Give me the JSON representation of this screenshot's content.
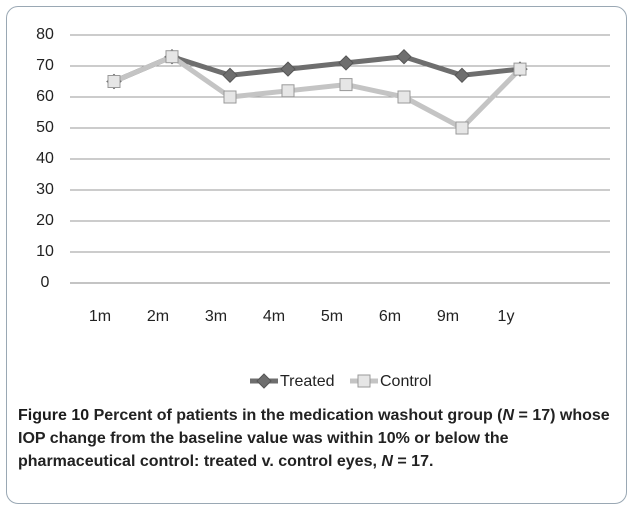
{
  "chart_data": {
    "type": "line",
    "categories": [
      "1m",
      "2m",
      "3m",
      "4m",
      "5m",
      "6m",
      "9m",
      "1y"
    ],
    "series": [
      {
        "name": "Treated",
        "color": "#6e6e6e",
        "values": [
          65,
          73,
          67,
          69,
          71,
          73,
          67,
          69
        ]
      },
      {
        "name": "Control",
        "color": "#c4c4c4",
        "values": [
          65,
          73,
          60,
          62,
          64,
          60,
          50,
          69
        ]
      }
    ],
    "ylim": [
      0,
      80
    ],
    "yticks": [
      0,
      10,
      20,
      30,
      40,
      50,
      60,
      70,
      80
    ],
    "grid": true,
    "legend": "bottom"
  },
  "caption": [
    "Figure 10",
    " Percent of patients in the medication washout group (",
    "N",
    " = 17) whose IOP change from the baseline value was within 10% or below the pharmaceutical control: treated v. control eyes, ",
    "N",
    " = 17."
  ]
}
